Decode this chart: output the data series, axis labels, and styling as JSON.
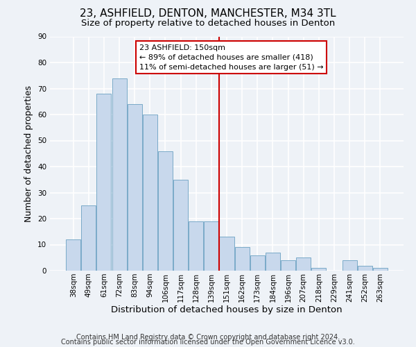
{
  "title": "23, ASHFIELD, DENTON, MANCHESTER, M34 3TL",
  "subtitle": "Size of property relative to detached houses in Denton",
  "xlabel": "Distribution of detached houses by size in Denton",
  "ylabel": "Number of detached properties",
  "categories": [
    "38sqm",
    "49sqm",
    "61sqm",
    "72sqm",
    "83sqm",
    "94sqm",
    "106sqm",
    "117sqm",
    "128sqm",
    "139sqm",
    "151sqm",
    "162sqm",
    "173sqm",
    "184sqm",
    "196sqm",
    "207sqm",
    "218sqm",
    "229sqm",
    "241sqm",
    "252sqm",
    "263sqm"
  ],
  "values": [
    12,
    25,
    68,
    74,
    64,
    60,
    46,
    35,
    19,
    19,
    13,
    9,
    6,
    7,
    4,
    5,
    1,
    0,
    4,
    2,
    1
  ],
  "bar_color": "#c8d8ec",
  "bar_edge_color": "#7aaac8",
  "vline_x_index": 10,
  "vline_color": "#cc0000",
  "annotation_text": "23 ASHFIELD: 150sqm\n← 89% of detached houses are smaller (418)\n11% of semi-detached houses are larger (51) →",
  "annotation_box_color": "#ffffff",
  "annotation_box_edge_color": "#cc0000",
  "ylim": [
    0,
    90
  ],
  "yticks": [
    0,
    10,
    20,
    30,
    40,
    50,
    60,
    70,
    80,
    90
  ],
  "footer_line1": "Contains HM Land Registry data © Crown copyright and database right 2024.",
  "footer_line2": "Contains public sector information licensed under the Open Government Licence v3.0.",
  "background_color": "#eef2f7",
  "grid_color": "#ffffff",
  "title_fontsize": 11,
  "subtitle_fontsize": 9.5,
  "xlabel_fontsize": 9.5,
  "ylabel_fontsize": 9,
  "tick_fontsize": 7.5,
  "annotation_fontsize": 8,
  "footer_fontsize": 7
}
